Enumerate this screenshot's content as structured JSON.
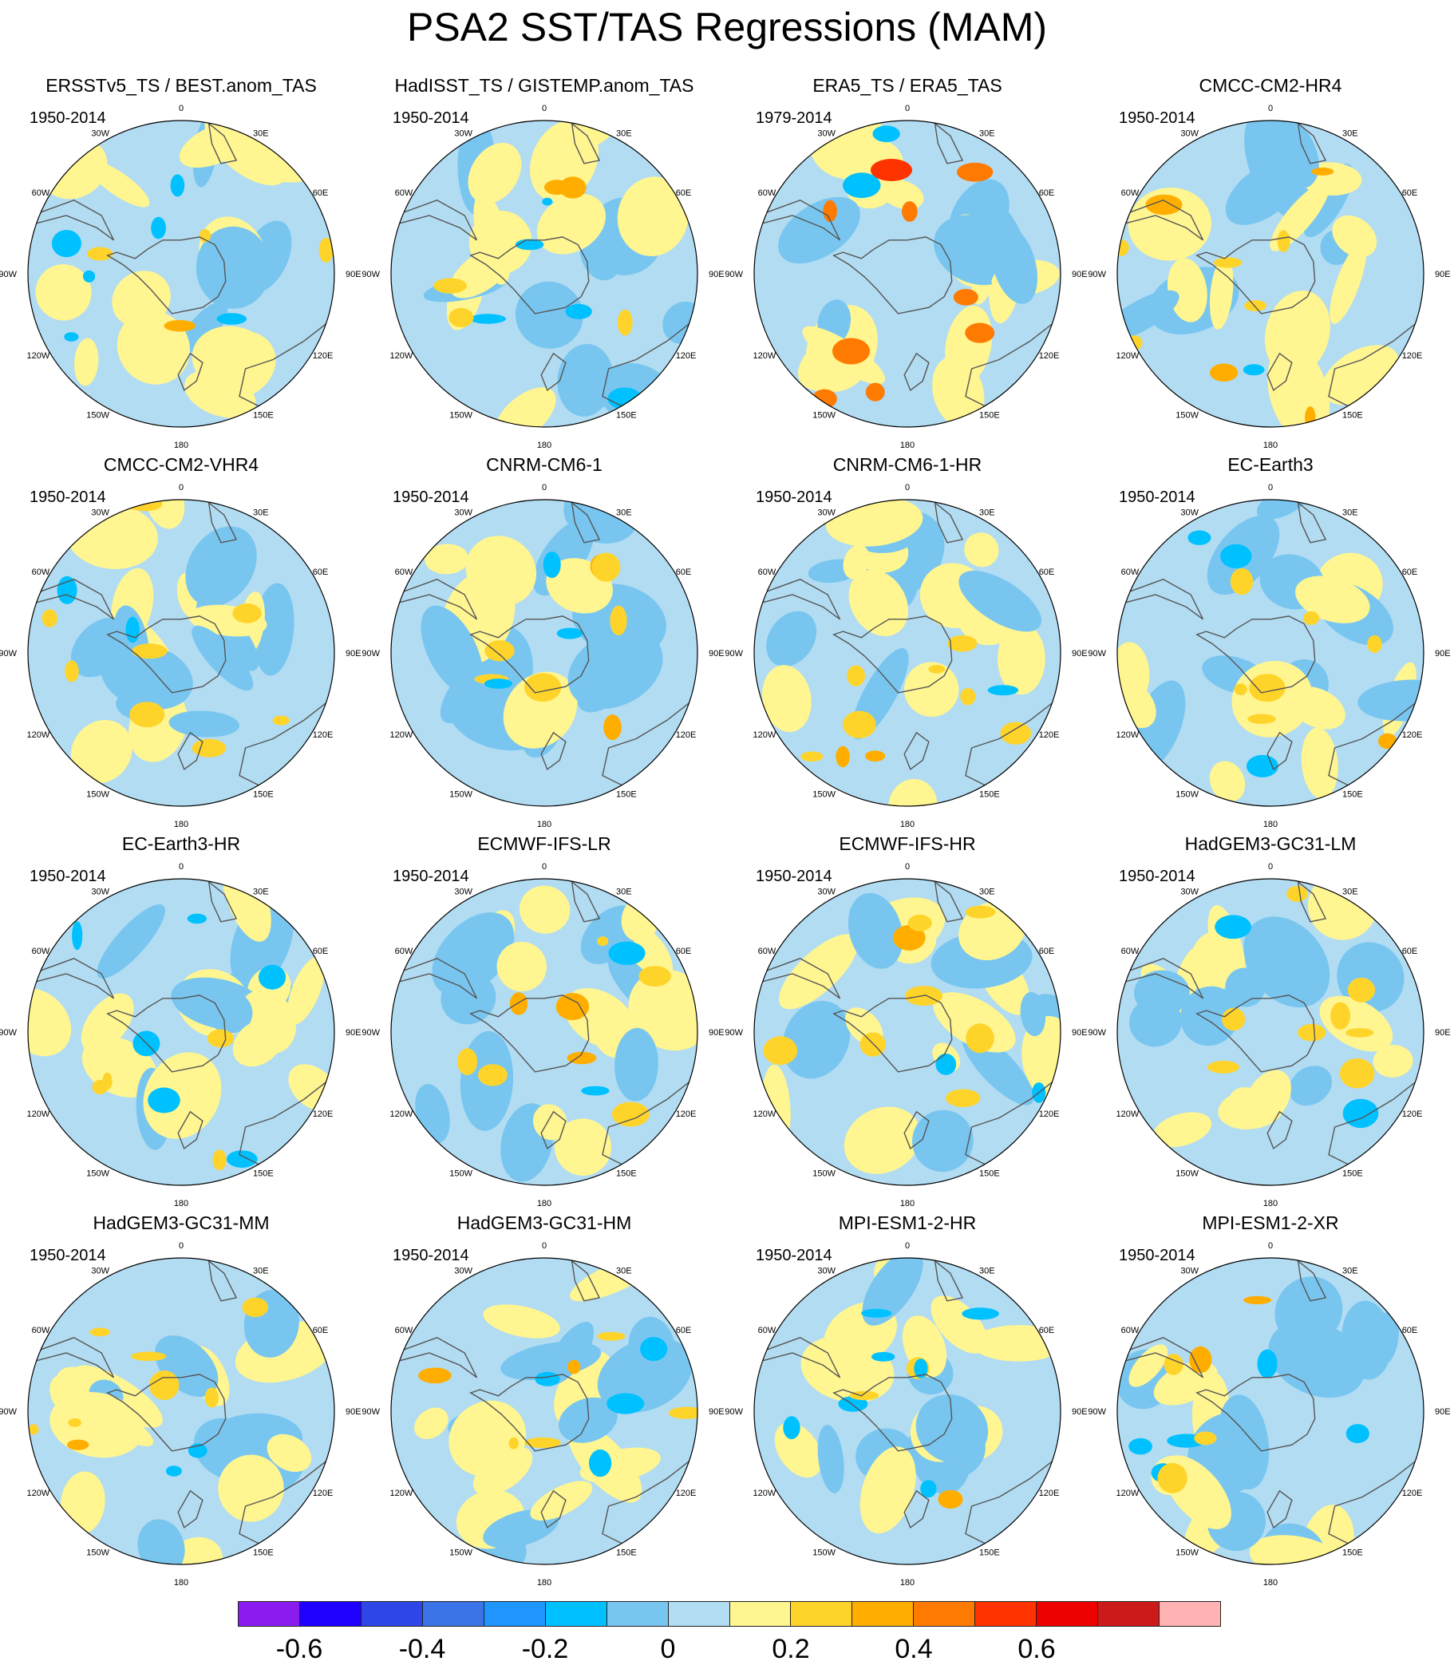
{
  "title": "PSA2 SST/TAS Regressions (MAM)",
  "lon_labels": [
    "0",
    "30E",
    "60E",
    "90E",
    "120E",
    "150E",
    "180",
    "150W",
    "120W",
    "90W",
    "60W",
    "30W"
  ],
  "panels": [
    {
      "title": "ERSSTv5_TS / BEST.anom_TAS",
      "period": "1950-2014"
    },
    {
      "title": "HadISST_TS / GISTEMP.anom_TAS",
      "period": "1950-2014"
    },
    {
      "title": "ERA5_TS / ERA5_TAS",
      "period": "1979-2014"
    },
    {
      "title": "CMCC-CM2-HR4",
      "period": "1950-2014"
    },
    {
      "title": "CMCC-CM2-VHR4",
      "period": "1950-2014"
    },
    {
      "title": "CNRM-CM6-1",
      "period": "1950-2014"
    },
    {
      "title": "CNRM-CM6-1-HR",
      "period": "1950-2014"
    },
    {
      "title": "EC-Earth3",
      "period": "1950-2014"
    },
    {
      "title": "EC-Earth3-HR",
      "period": "1950-2014"
    },
    {
      "title": "ECMWF-IFS-LR",
      "period": "1950-2014"
    },
    {
      "title": "ECMWF-IFS-HR",
      "period": "1950-2014"
    },
    {
      "title": "HadGEM3-GC31-LM",
      "period": "1950-2014"
    },
    {
      "title": "HadGEM3-GC31-MM",
      "period": "1950-2014"
    },
    {
      "title": "HadGEM3-GC31-HM",
      "period": "1950-2014"
    },
    {
      "title": "MPI-ESM1-2-HR",
      "period": "1950-2014"
    },
    {
      "title": "MPI-ESM1-2-XR",
      "period": "1950-2014"
    }
  ],
  "colorbar": {
    "colors": [
      "#8b1cf0",
      "#1d00ff",
      "#2e46e8",
      "#3a74e8",
      "#1f96ff",
      "#00c1ff",
      "#78c6f0",
      "#b2dcf2",
      "#fff591",
      "#ffd42a",
      "#ffae00",
      "#ff7a00",
      "#ff3300",
      "#ee0000",
      "#cc1a1a",
      "#ffb3b3"
    ],
    "labels": [
      "-0.6",
      "-0.4",
      "-0.2",
      "0",
      "0.2",
      "0.4",
      "0.6"
    ],
    "label_boundary_index": [
      1,
      3,
      5,
      7,
      9,
      11,
      13
    ]
  }
}
